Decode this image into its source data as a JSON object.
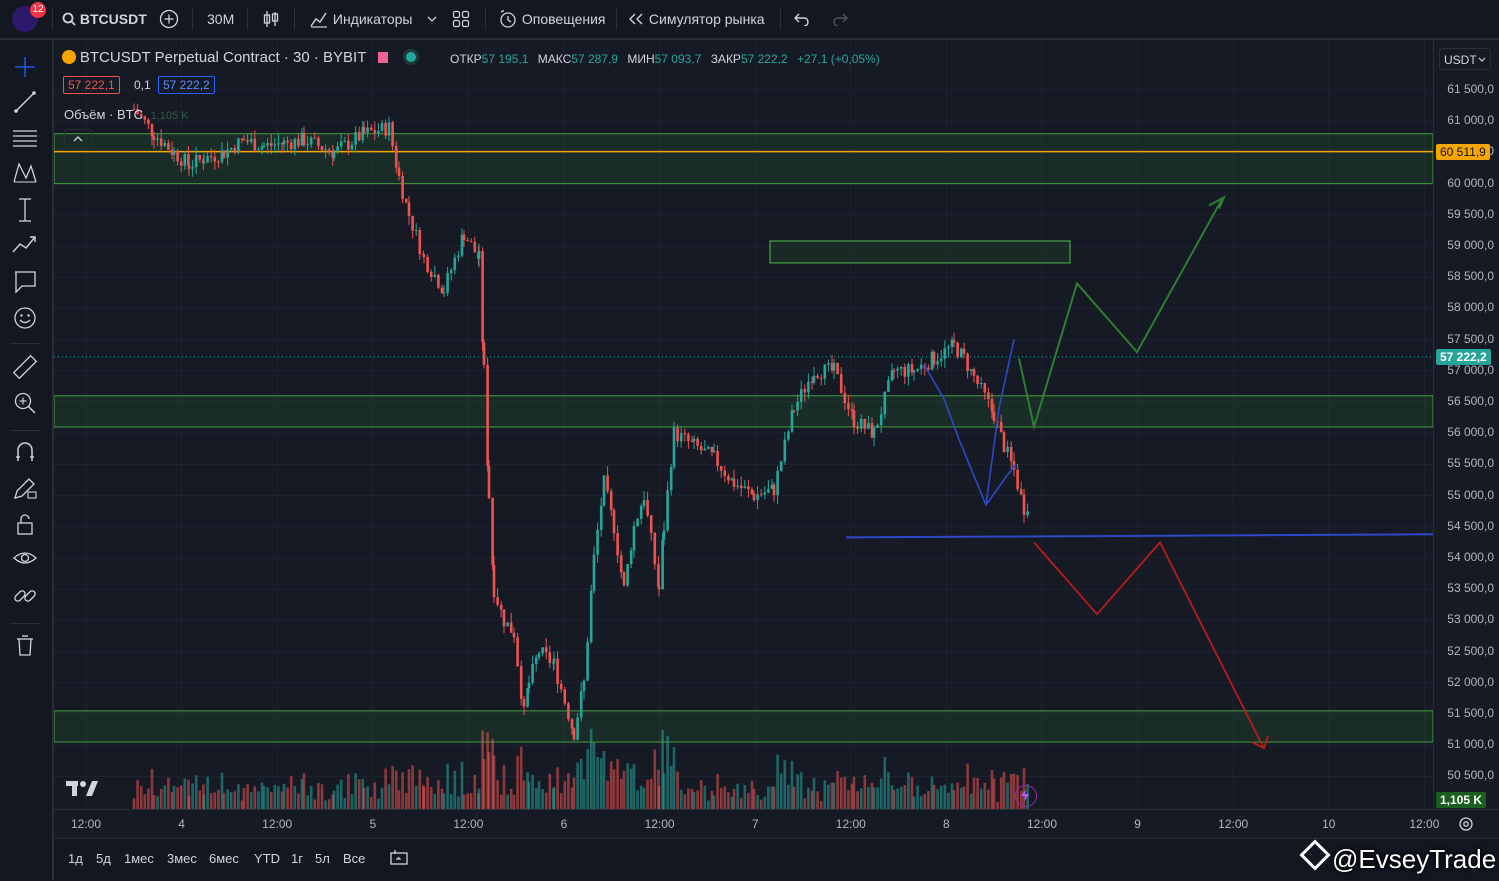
{
  "topbar": {
    "notif_count": "12",
    "symbol": "BTCUSDT",
    "interval": "30M",
    "indicators": "Индикаторы",
    "alerts": "Оповещения",
    "simulator": "Симулятор рынка"
  },
  "legend": {
    "title": "BTCUSDT Perpetual Contract · 30 · BYBIT",
    "open_label": "ОТКР",
    "open": "57 195,1",
    "high_label": "МАКС",
    "high": "57 287,9",
    "low_label": "МИН",
    "low": "57 093,7",
    "close_label": "ЗАКР",
    "close": "57 222,2",
    "change": "+27,1 (+0,05%)",
    "sell_price": "57 222,1",
    "spread": "0,1",
    "buy_price": "57 222,2",
    "volume_label": "Объём · BTC",
    "volume_value": "1,105 K"
  },
  "currency": "USDT",
  "price_scale": [
    "61 500,0",
    "61 000,0",
    "60 500,0",
    "60 000,0",
    "59 500,0",
    "59 000,0",
    "58 500,0",
    "58 000,0",
    "57 500,0",
    "57 000,0",
    "56 500,0",
    "56 000,0",
    "55 500,0",
    "55 000,0",
    "54 500,0",
    "54 000,0",
    "53 500,0",
    "53 000,0",
    "52 500,0",
    "52 000,0",
    "51 500,0",
    "51 000,0",
    "50 500,0"
  ],
  "price_tags": {
    "level": "60 511,9",
    "level_color": "#f7a600",
    "current": "57 222,2",
    "current_color": "#26a69a",
    "volume": "1,105 K"
  },
  "time_axis": [
    "12:00",
    "4",
    "12:00",
    "5",
    "12:00",
    "6",
    "12:00",
    "7",
    "12:00",
    "8",
    "12:00",
    "9",
    "12:00",
    "10",
    "12:00"
  ],
  "ranges": [
    "1д",
    "5д",
    "1мес",
    "3мес",
    "6мес",
    "YTD",
    "1г",
    "5л",
    "Все"
  ],
  "watermark": "@EvseyTrade",
  "colors": {
    "up": "#26a69a",
    "down": "#ef5350",
    "zone_border": "#3d8b3d",
    "support_line": "#2b49c8",
    "bull_path": "#2e7d32",
    "bear_path": "#b71c1c"
  },
  "icons": [
    "search-icon",
    "plus-circle-icon",
    "candles-icon",
    "indicators-icon",
    "chevron-down-icon",
    "layout-icon",
    "alarm-icon",
    "rewind-icon",
    "undo-icon",
    "redo-icon",
    "crosshair-icon",
    "trendline-icon",
    "fib-icon",
    "pattern-icon",
    "measure-icon",
    "forecast-icon",
    "brush-icon",
    "emoji-icon",
    "ruler-icon",
    "zoom-icon",
    "magnet-icon",
    "pencil-lock-icon",
    "lock-icon",
    "eye-icon",
    "link-icon",
    "trash-icon",
    "tradingview-logo-icon",
    "lightning-icon",
    "replay-icon",
    "settings-icon"
  ]
}
